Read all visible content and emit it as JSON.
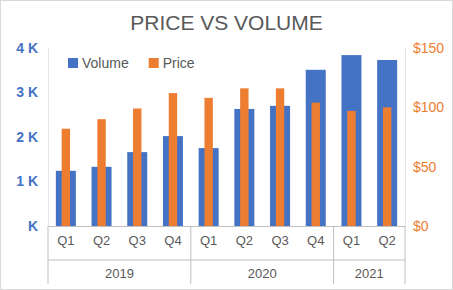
{
  "chart_data": {
    "type": "bar",
    "title": "PRICE VS VOLUME",
    "categories": [
      "Q1",
      "Q2",
      "Q3",
      "Q4",
      "Q1",
      "Q2",
      "Q3",
      "Q4",
      "Q1",
      "Q2"
    ],
    "groups": [
      {
        "label": "2019",
        "count": 4
      },
      {
        "label": "2020",
        "count": 4
      },
      {
        "label": "2021",
        "count": 2
      }
    ],
    "series": [
      {
        "name": "Volume",
        "color": "#4472c4",
        "values": [
          1240,
          1330,
          1660,
          2020,
          1750,
          2630,
          2700,
          3510,
          3840,
          3730
        ]
      },
      {
        "name": "Price",
        "color": "#ed7d31",
        "axis": "y2",
        "values": [
          82,
          90,
          99,
          112,
          108,
          116,
          116,
          104,
          97,
          100
        ]
      }
    ],
    "ylim": [
      0,
      4000
    ],
    "yticks": [
      {
        "value": 0,
        "label": "K"
      },
      {
        "value": 1000,
        "label": "1 K"
      },
      {
        "value": 2000,
        "label": "2 K"
      },
      {
        "value": 3000,
        "label": "3 K"
      },
      {
        "value": 4000,
        "label": "4 K"
      }
    ],
    "y2lim": [
      0,
      150
    ],
    "y2ticks": [
      {
        "value": 0,
        "label": "$0"
      },
      {
        "value": 50,
        "label": "$50"
      },
      {
        "value": 100,
        "label": "$100"
      },
      {
        "value": 150,
        "label": "$150"
      }
    ],
    "legend": "top-left",
    "grid": false
  }
}
